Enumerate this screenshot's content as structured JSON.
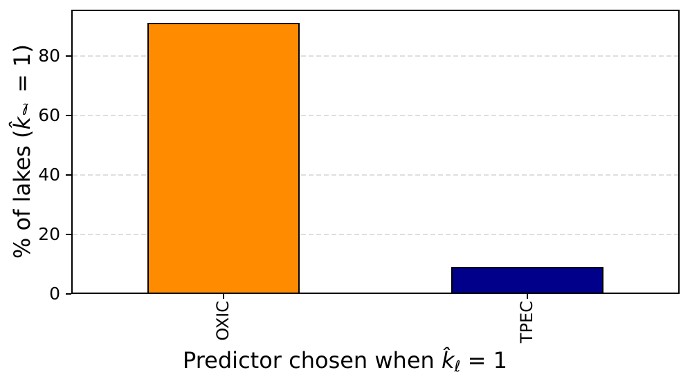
{
  "figure": {
    "background": "#ffffff",
    "axis_color": "#000000"
  },
  "chart_data": {
    "type": "bar",
    "title": "",
    "categories": [
      "OXIC",
      "TPEC"
    ],
    "values": [
      91,
      9
    ],
    "bar_colors": [
      "#ff8c00",
      "#00008b"
    ],
    "bar_edge_color": "#000000",
    "bar_width_fraction": 0.5,
    "xlabel": "Predictor chosen when k̂ℓ = 1",
    "ylabel": "% of lakes (k̂ℓ = 1)",
    "xlabel_parts": {
      "prefix": "Predictor chosen when ",
      "var": "k̂",
      "sub": "ℓ",
      "suffix": " = 1"
    },
    "ylabel_parts": {
      "prefix": "% of lakes (",
      "var": "k̂",
      "sub": "ℓ",
      "suffix": " = 1)"
    },
    "yticks": [
      0,
      20,
      40,
      60,
      80
    ],
    "ytick_labels": [
      "0",
      "20",
      "40",
      "60",
      "80"
    ],
    "ylim": [
      0,
      95.5
    ],
    "xtick_label_rotation": 90,
    "grid": {
      "axis": "y",
      "style": "dashed",
      "color": "#dedede",
      "on": true
    },
    "legend_visible": false
  }
}
